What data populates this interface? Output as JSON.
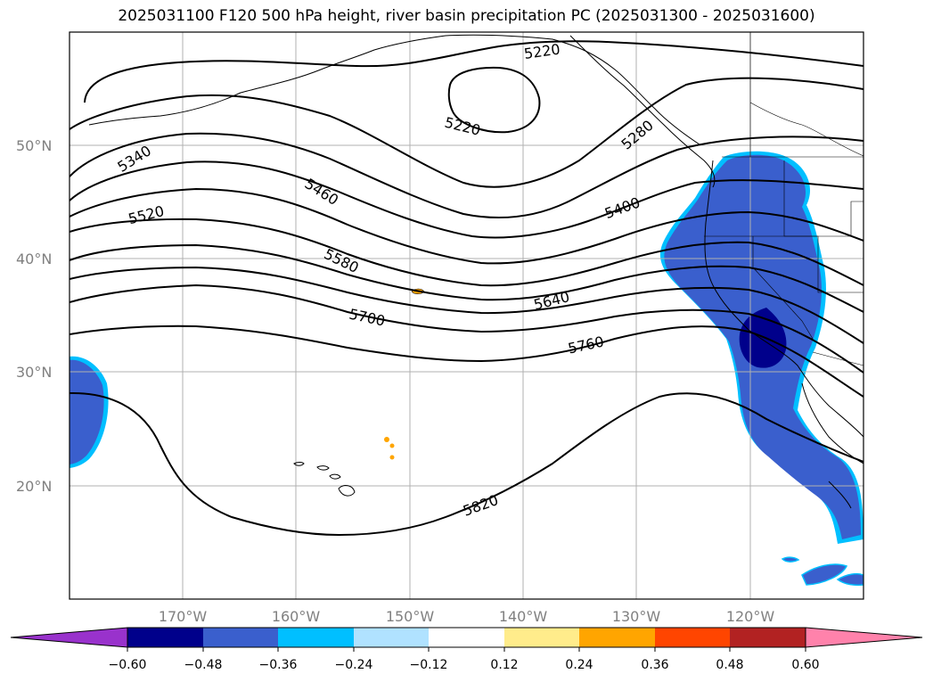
{
  "title": "2025031100 F120 500 hPa height, river basin precipitation PC (2025031300 - 2025031600)",
  "map": {
    "latitudes": [
      "50°N",
      "40°N",
      "30°N",
      "20°N"
    ],
    "longitudes": [
      "170°W",
      "160°W",
      "150°W",
      "140°W",
      "130°W",
      "120°W"
    ],
    "contour_labels": [
      "5220",
      "5220",
      "5280",
      "5340",
      "5520",
      "5460",
      "5400",
      "5580",
      "5640",
      "5700",
      "5760",
      "5820"
    ]
  },
  "colorbar": {
    "colors": [
      "#9932CC",
      "#00008B",
      "#3A5FCD",
      "#00BFFF",
      "#B0E2FF",
      "#FFFFFF",
      "#FFEC8B",
      "#FFA500",
      "#FF4500",
      "#B22222",
      "#FF82AB"
    ],
    "ticks": [
      "−0.60",
      "−0.48",
      "−0.36",
      "−0.24",
      "−0.12",
      "0.12",
      "0.24",
      "0.36",
      "0.48",
      "0.60"
    ]
  }
}
